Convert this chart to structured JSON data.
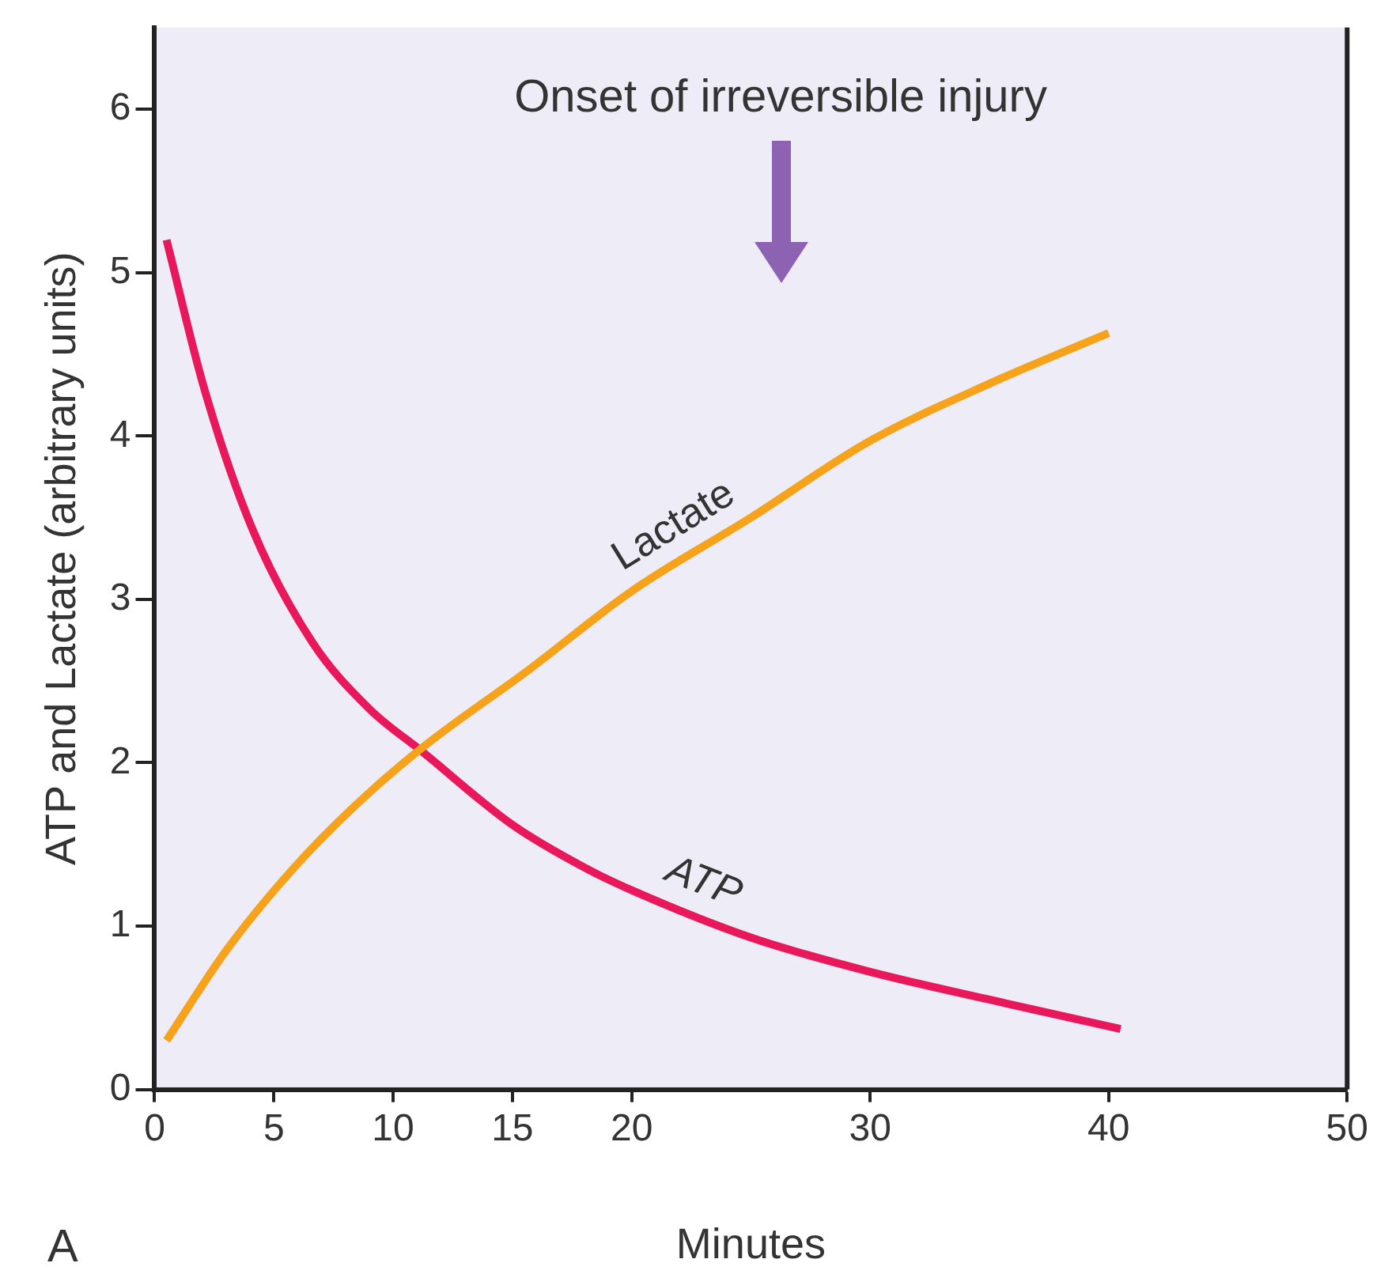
{
  "chart_data": {
    "type": "line",
    "xlabel": "Minutes",
    "ylabel": "ATP and Lactate (arbitrary units)",
    "xlim": [
      0,
      50
    ],
    "xticks": [
      0,
      5,
      10,
      15,
      20,
      30,
      40,
      50
    ],
    "ylim": [
      0,
      6.5
    ],
    "yticks": [
      0,
      1,
      2,
      3,
      4,
      5,
      6
    ],
    "grid": false,
    "legend": false,
    "marker": "none",
    "line_style": "solid",
    "series": [
      {
        "name": "Lactate",
        "color": "#f7a21b",
        "x": [
          0.5,
          3,
          5.8,
          8.5,
          11.2,
          15.7,
          20,
          25,
          30,
          35,
          40
        ],
        "values": [
          0.3,
          0.85,
          1.35,
          1.75,
          2.09,
          2.57,
          3.05,
          3.5,
          3.97,
          4.32,
          4.63
        ]
      },
      {
        "name": "ATP",
        "color": "#e8185a",
        "x": [
          0.5,
          2.1,
          4.1,
          6.6,
          9,
          11.2,
          15,
          18,
          20,
          25,
          30,
          35,
          40.5
        ],
        "values": [
          5.2,
          4.28,
          3.43,
          2.74,
          2.33,
          2.07,
          1.62,
          1.36,
          1.22,
          0.93,
          0.72,
          0.55,
          0.37
        ]
      }
    ],
    "annotations": [
      "Onset of irreversible injury",
      "A"
    ]
  }
}
